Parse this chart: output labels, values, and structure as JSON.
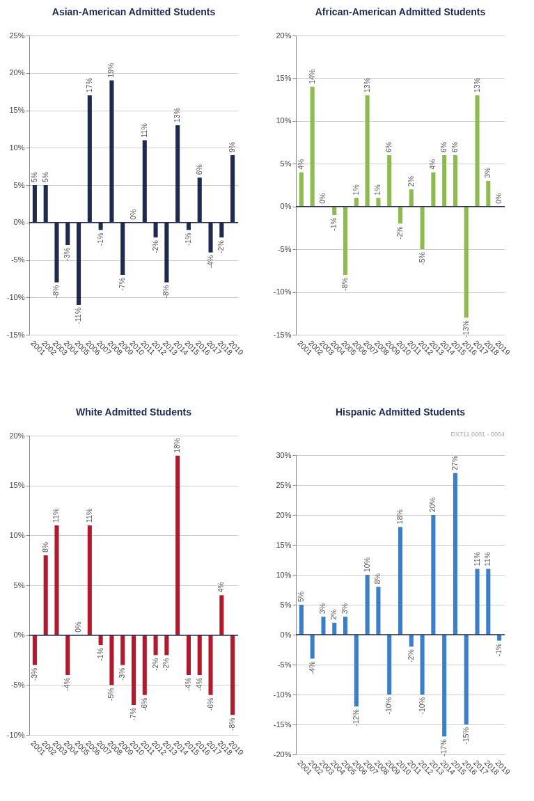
{
  "chart_data": [
    {
      "type": "bar",
      "title": "Asian-American Admitted Students",
      "categories": [
        "2001",
        "2002",
        "2003",
        "2004",
        "2005",
        "2006",
        "2007",
        "2008",
        "2009",
        "2010",
        "2011",
        "2012",
        "2013",
        "2014",
        "2015",
        "2016",
        "2017",
        "2018",
        "2019"
      ],
      "values": [
        5,
        5,
        -8,
        -3,
        -11,
        17,
        -1,
        19,
        -7,
        0,
        11,
        -2,
        -8,
        13,
        -1,
        6,
        -4,
        -2,
        9
      ],
      "value_labels": [
        "5%",
        "5%",
        "-8%",
        "-3%",
        "-11%",
        "17%",
        "-1%",
        "19%",
        "-7%",
        "0%",
        "11%",
        "-2%",
        "-8%",
        "13%",
        "-1%",
        "6%",
        "-4%",
        "-2%",
        "9%"
      ],
      "color": "#1f2a4d",
      "ylim": [
        -15,
        25
      ],
      "yticks": [
        {
          "value": -15,
          "label": "-15%"
        },
        {
          "value": -10,
          "label": "-10%"
        },
        {
          "value": -5,
          "label": "-5%"
        },
        {
          "value": 0,
          "label": "0%"
        },
        {
          "value": 5,
          "label": "5%"
        },
        {
          "value": 10,
          "label": "10%"
        },
        {
          "value": 15,
          "label": "15%"
        },
        {
          "value": 20,
          "label": "20%"
        },
        {
          "value": 25,
          "label": "25%"
        }
      ],
      "grid": "y",
      "ref_lines": [
        {
          "axis": "y",
          "value": 0,
          "color": "#1f2a4d"
        }
      ]
    },
    {
      "type": "bar",
      "title": "African-American Admitted Students",
      "categories": [
        "2001",
        "2002",
        "2003",
        "2004",
        "2005",
        "2006",
        "2007",
        "2008",
        "2009",
        "2010",
        "2011",
        "2012",
        "2013",
        "2014",
        "2015",
        "2016",
        "2017",
        "2018",
        "2019"
      ],
      "values": [
        4,
        14,
        0,
        -1,
        -8,
        1,
        13,
        1,
        6,
        -2,
        2,
        -5,
        4,
        6,
        6,
        -13,
        13,
        3,
        0
      ],
      "value_labels": [
        "4%",
        "14%",
        "0%",
        "-1%",
        "-8%",
        "1%",
        "13%",
        "1%",
        "6%",
        "-2%",
        "2%",
        "-5%",
        "4%",
        "6%",
        "6%",
        "-13%",
        "13%",
        "3%",
        "0%"
      ],
      "color": "#8dbb4f",
      "ylim": [
        -15,
        20
      ],
      "yticks": [
        {
          "value": -15,
          "label": "-15%"
        },
        {
          "value": -10,
          "label": "-10%"
        },
        {
          "value": -5,
          "label": "-5%"
        },
        {
          "value": 0,
          "label": "0%"
        },
        {
          "value": 5,
          "label": "5%"
        },
        {
          "value": 10,
          "label": "10%"
        },
        {
          "value": 15,
          "label": "15%"
        },
        {
          "value": 20,
          "label": "20%"
        }
      ],
      "grid": "y",
      "ref_lines": [
        {
          "axis": "y",
          "value": 0,
          "color": "#1f2a4d"
        }
      ]
    },
    {
      "type": "bar",
      "title": "White Admitted Students",
      "categories": [
        "2001",
        "2002",
        "2003",
        "2004",
        "2005",
        "2006",
        "2007",
        "2008",
        "2009",
        "2010",
        "2011",
        "2012",
        "2013",
        "2014",
        "2015",
        "2016",
        "2017",
        "2018",
        "2019"
      ],
      "values": [
        -3,
        8,
        11,
        -4,
        0,
        11,
        -1,
        -5,
        -3,
        -7,
        -6,
        -2,
        -2,
        18,
        -4,
        -4,
        -6,
        4,
        -8
      ],
      "value_labels": [
        "-3%",
        "8%",
        "11%",
        "-4%",
        "0%",
        "11%",
        "-1%",
        "-5%",
        "-3%",
        "-7%",
        "-6%",
        "-2%",
        "-2%",
        "18%",
        "-4%",
        "-4%",
        "-6%",
        "4%",
        "-8%"
      ],
      "color": "#b11a2c",
      "ylim": [
        -10,
        20
      ],
      "yticks": [
        {
          "value": -10,
          "label": "-10%"
        },
        {
          "value": -5,
          "label": "-5%"
        },
        {
          "value": 0,
          "label": "0%"
        },
        {
          "value": 5,
          "label": "5%"
        },
        {
          "value": 10,
          "label": "10%"
        },
        {
          "value": 15,
          "label": "15%"
        },
        {
          "value": 20,
          "label": "20%"
        }
      ],
      "grid": "y",
      "ref_lines": [
        {
          "axis": "y",
          "value": 0,
          "color": "#1f2a4d"
        }
      ]
    },
    {
      "type": "bar",
      "title": "Hispanic Admitted Students",
      "categories": [
        "2001",
        "2002",
        "2003",
        "2004",
        "2005",
        "2006",
        "2007",
        "2008",
        "2009",
        "2010",
        "2011",
        "2012",
        "2013",
        "2014",
        "2015",
        "2016",
        "2017",
        "2018",
        "2019"
      ],
      "values": [
        5,
        -4,
        3,
        2,
        3,
        -12,
        10,
        8,
        -10,
        18,
        -2,
        -10,
        20,
        -17,
        27,
        -15,
        11,
        11,
        -1
      ],
      "value_labels": [
        "5%",
        "-4%",
        "3%",
        "2%",
        "3%",
        "-12%",
        "10%",
        "8%",
        "-10%",
        "18%",
        "-2%",
        "-10%",
        "20%",
        "-17%",
        "27%",
        "-15%",
        "11%",
        "11%",
        "-1%"
      ],
      "color": "#3b7fca",
      "ylim": [
        -20,
        30
      ],
      "yticks": [
        {
          "value": -20,
          "label": "-20%"
        },
        {
          "value": -15,
          "label": "-15%"
        },
        {
          "value": -10,
          "label": "-10%"
        },
        {
          "value": -5,
          "label": "-5%"
        },
        {
          "value": 0,
          "label": "0%"
        },
        {
          "value": 5,
          "label": "5%"
        },
        {
          "value": 10,
          "label": "10%"
        },
        {
          "value": 15,
          "label": "15%"
        },
        {
          "value": 20,
          "label": "20%"
        },
        {
          "value": 25,
          "label": "25%"
        },
        {
          "value": 30,
          "label": "30%"
        }
      ],
      "grid": "y",
      "ref_lines": [
        {
          "axis": "y",
          "value": 0,
          "color": "#1f2a4d"
        }
      ],
      "annotations": [
        "DX711.0001 - 0004"
      ]
    }
  ]
}
